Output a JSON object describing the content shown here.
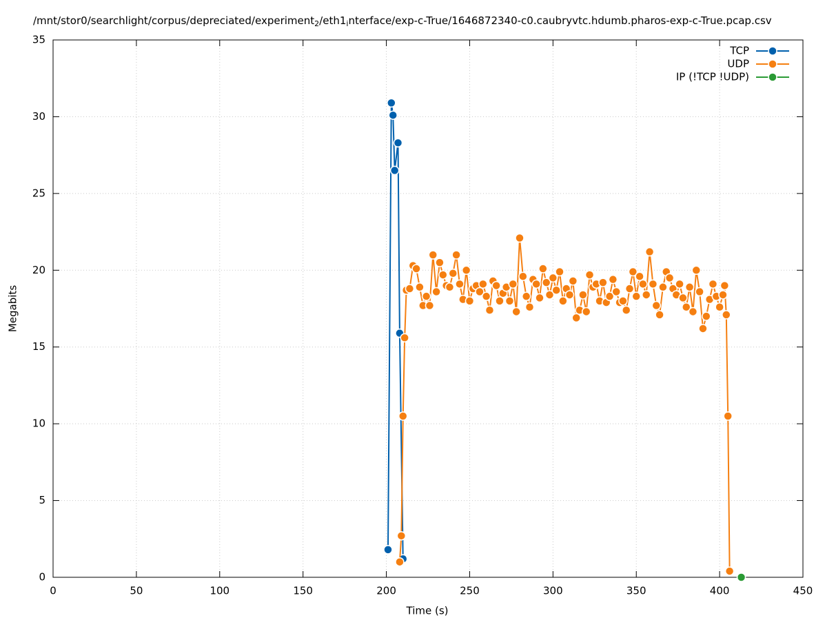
{
  "chart_data": {
    "type": "line",
    "title_segments": [
      "/mnt/stor0/searchlight/corpus/depreciated/experiment",
      "2",
      "/eth1",
      "i",
      "nterface/exp-c-True/1646872340-c0.caubryvtc.hdumb.pharos-exp-c-True.pcap.csv"
    ],
    "x_label": "Time (s)",
    "y_label": "Megabits",
    "xlim": [
      0,
      450
    ],
    "xticks": [
      0,
      50,
      100,
      150,
      200,
      250,
      300,
      350,
      400,
      450
    ],
    "ylim": [
      0,
      35
    ],
    "yticks": [
      0,
      5,
      10,
      15,
      20,
      25,
      30,
      35
    ],
    "grid": true,
    "legend": "top-right",
    "series": [
      {
        "name": "TCP",
        "color": "#0060ad",
        "x": [
          201,
          203,
          204,
          205,
          207,
          208,
          210
        ],
        "values": [
          1.8,
          30.9,
          30.1,
          26.5,
          28.3,
          15.9,
          1.2
        ]
      },
      {
        "name": "UDP",
        "color": "#f57f11",
        "x": [
          208,
          209,
          210,
          211,
          212,
          214,
          216,
          218,
          220,
          222,
          224,
          226,
          228,
          230,
          232,
          234,
          236,
          238,
          240,
          242,
          244,
          246,
          248,
          250,
          252,
          254,
          256,
          258,
          260,
          262,
          264,
          266,
          268,
          270,
          272,
          274,
          276,
          278,
          280,
          282,
          284,
          286,
          288,
          290,
          292,
          294,
          296,
          298,
          300,
          302,
          304,
          306,
          308,
          310,
          312,
          314,
          316,
          318,
          320,
          322,
          324,
          326,
          328,
          330,
          332,
          334,
          336,
          338,
          340,
          342,
          344,
          346,
          348,
          350,
          352,
          354,
          356,
          358,
          360,
          362,
          364,
          366,
          368,
          370,
          372,
          374,
          376,
          378,
          380,
          382,
          384,
          386,
          388,
          390,
          392,
          394,
          396,
          398,
          400,
          402,
          403,
          404,
          405,
          406
        ],
        "values": [
          1.0,
          2.7,
          10.5,
          15.6,
          18.7,
          18.8,
          20.3,
          20.1,
          18.9,
          17.7,
          18.3,
          17.7,
          21.0,
          18.6,
          20.5,
          19.7,
          19.0,
          18.9,
          19.8,
          21.0,
          19.1,
          18.1,
          20.0,
          18.0,
          18.8,
          19.0,
          18.6,
          19.1,
          18.3,
          17.4,
          19.3,
          19.0,
          18.0,
          18.5,
          18.9,
          18.0,
          19.1,
          17.3,
          22.1,
          19.6,
          18.3,
          17.6,
          19.4,
          19.1,
          18.2,
          20.1,
          19.2,
          18.4,
          19.5,
          18.7,
          19.9,
          18.0,
          18.8,
          18.4,
          19.3,
          16.9,
          17.4,
          18.4,
          17.3,
          19.7,
          18.9,
          19.1,
          18.0,
          19.2,
          17.9,
          18.3,
          19.4,
          18.6,
          17.9,
          18.0,
          17.4,
          18.8,
          19.9,
          18.3,
          19.6,
          19.1,
          18.4,
          21.2,
          19.1,
          17.7,
          17.1,
          18.9,
          19.9,
          19.5,
          18.8,
          18.4,
          19.1,
          18.2,
          17.6,
          18.9,
          17.3,
          20.0,
          18.6,
          16.2,
          17.0,
          18.1,
          19.1,
          18.3,
          17.6,
          18.4,
          19.0,
          17.1,
          10.5,
          0.4
        ]
      },
      {
        "name": "IP (!TCP  !UDP)",
        "color": "#2a9a34",
        "x": [
          413
        ],
        "values": [
          0
        ]
      }
    ]
  }
}
